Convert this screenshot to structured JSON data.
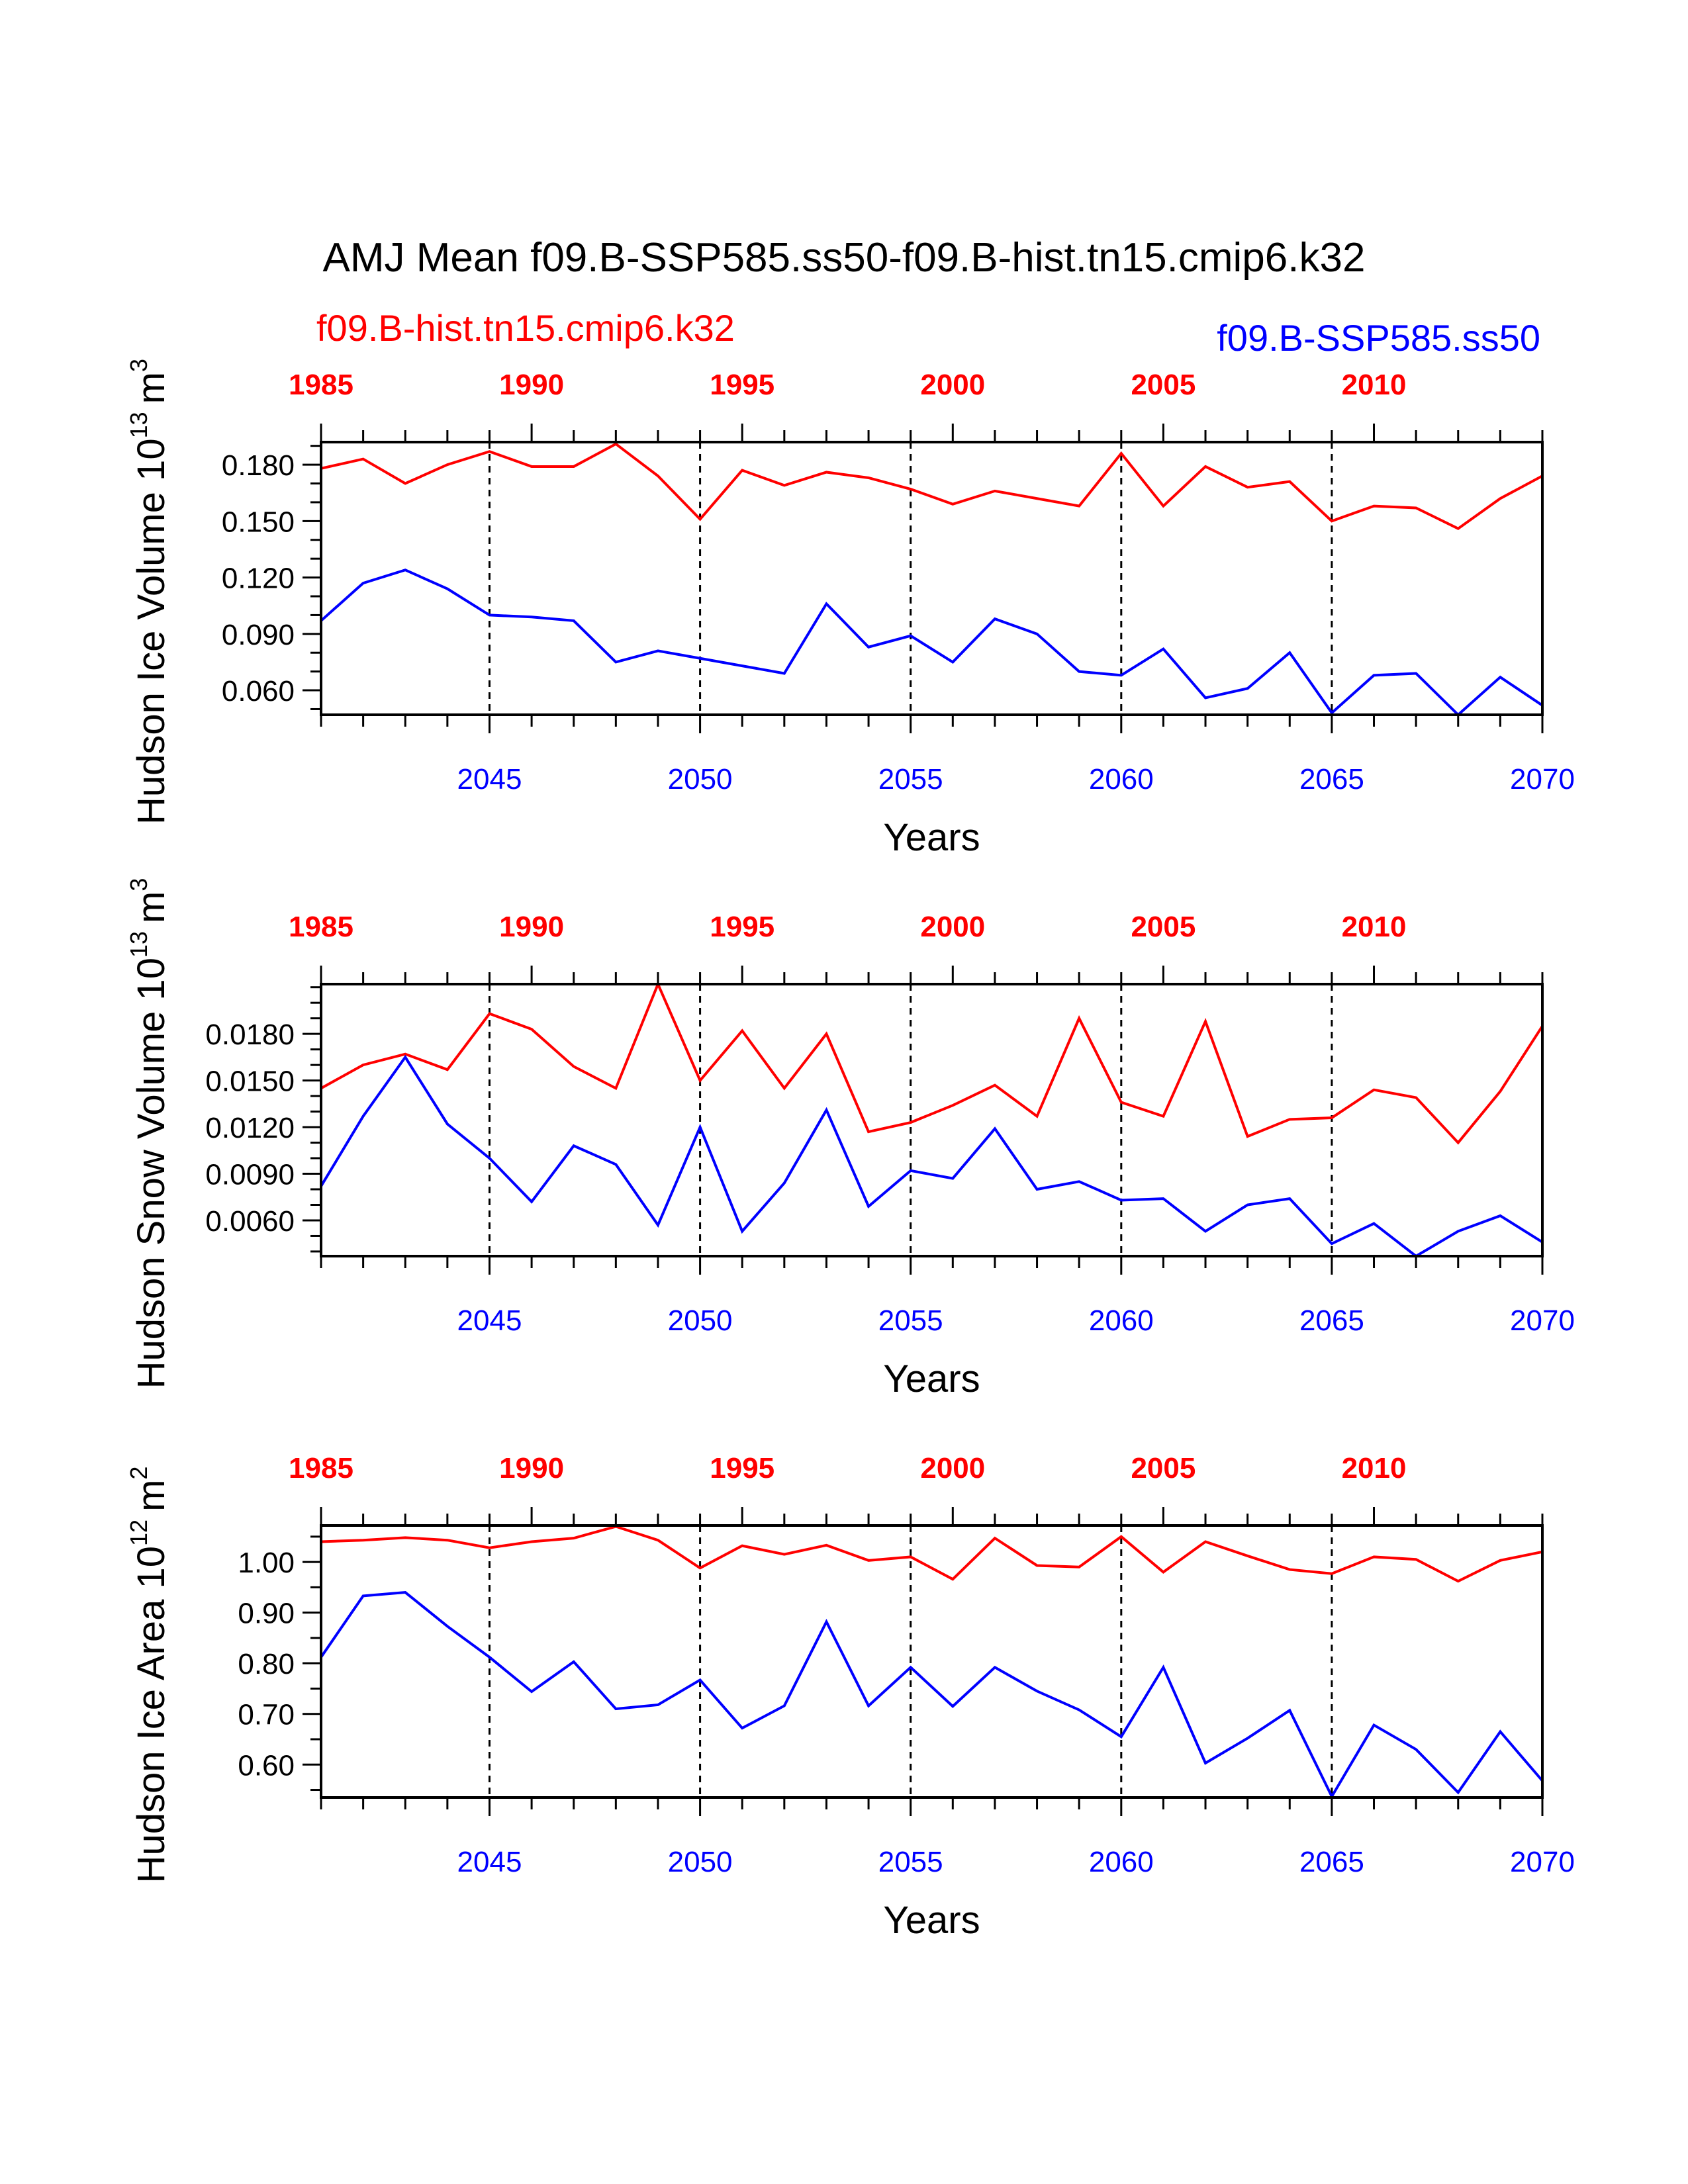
{
  "title": "AMJ Mean f09.B-SSP585.ss50-f09.B-hist.tn15.cmip6.k32",
  "legend": {
    "hist_label": "f09.B-hist.tn15.cmip6.k32",
    "ssp_label": "f09.B-SSP585.ss50"
  },
  "colors": {
    "hist": "#ff0000",
    "ssp": "#0000ff",
    "axis": "#000000"
  },
  "chart_data": [
    {
      "type": "line",
      "ylabel": "Hudson Ice Volume 10",
      "yunit_exp": "13",
      "yunit": "m",
      "yunit_pow": "3",
      "xlabel": "Years",
      "x_bottom": {
        "range": [
          2041,
          2070
        ],
        "ticks": [
          2045,
          2050,
          2055,
          2060,
          2065,
          2070
        ]
      },
      "x_top": {
        "range": [
          1985,
          2014
        ],
        "ticks": [
          1985,
          1990,
          1995,
          2000,
          2005,
          2010
        ]
      },
      "ylim": [
        0.047,
        0.192
      ],
      "yticks": [
        "0.060",
        "0.090",
        "0.120",
        "0.150",
        "0.180"
      ],
      "yticks_num": [
        0.06,
        0.09,
        0.12,
        0.15,
        0.18
      ],
      "yminor_step": 0.01,
      "series": [
        {
          "name": "f09.B-hist.tn15.cmip6.k32",
          "color_key": "hist",
          "values": [
            0.178,
            0.183,
            0.17,
            0.18,
            0.187,
            0.179,
            0.179,
            0.191,
            0.174,
            0.151,
            0.177,
            0.169,
            0.176,
            0.173,
            0.167,
            0.159,
            0.166,
            0.162,
            0.158,
            0.186,
            0.158,
            0.179,
            0.168,
            0.171,
            0.15,
            0.158,
            0.157,
            0.146,
            0.162,
            0.174
          ]
        },
        {
          "name": "f09.B-SSP585.ss50",
          "color_key": "ssp",
          "values": [
            0.097,
            0.117,
            0.124,
            0.114,
            0.1,
            0.099,
            0.097,
            0.075,
            0.081,
            0.077,
            0.073,
            0.069,
            0.106,
            0.083,
            0.089,
            0.075,
            0.098,
            0.09,
            0.07,
            0.068,
            0.082,
            0.056,
            0.061,
            0.08,
            0.048,
            0.068,
            0.069,
            0.047,
            0.067,
            0.052
          ]
        }
      ]
    },
    {
      "type": "line",
      "ylabel": "Hudson Snow Volume 10",
      "yunit_exp": "13",
      "yunit": "m",
      "yunit_pow": "3",
      "xlabel": "Years",
      "x_bottom": {
        "range": [
          2041,
          2070
        ],
        "ticks": [
          2045,
          2050,
          2055,
          2060,
          2065,
          2070
        ]
      },
      "x_top": {
        "range": [
          1985,
          2014
        ],
        "ticks": [
          1985,
          1990,
          1995,
          2000,
          2005,
          2010
        ]
      },
      "ylim": [
        0.0037,
        0.0212
      ],
      "yticks": [
        "0.0060",
        "0.0090",
        "0.0120",
        "0.0150",
        "0.0180"
      ],
      "yticks_num": [
        0.006,
        0.009,
        0.012,
        0.015,
        0.018
      ],
      "yminor_step": 0.001,
      "series": [
        {
          "name": "f09.B-hist.tn15.cmip6.k32",
          "color_key": "hist",
          "values": [
            0.0145,
            0.016,
            0.0167,
            0.0157,
            0.0193,
            0.0183,
            0.0159,
            0.0145,
            0.0212,
            0.015,
            0.0182,
            0.0145,
            0.018,
            0.0117,
            0.0123,
            0.0134,
            0.0147,
            0.0127,
            0.019,
            0.0136,
            0.0127,
            0.0188,
            0.0114,
            0.0125,
            0.0126,
            0.0144,
            0.0139,
            0.011,
            0.0143,
            0.0185
          ]
        },
        {
          "name": "f09.B-SSP585.ss50",
          "color_key": "ssp",
          "values": [
            0.0082,
            0.0127,
            0.0165,
            0.0122,
            0.01,
            0.0072,
            0.0108,
            0.0096,
            0.0057,
            0.012,
            0.0053,
            0.0084,
            0.0131,
            0.0069,
            0.0092,
            0.0087,
            0.0119,
            0.008,
            0.0085,
            0.0073,
            0.0074,
            0.0053,
            0.007,
            0.0074,
            0.0045,
            0.0058,
            0.0037,
            0.0053,
            0.0063,
            0.0046
          ]
        }
      ]
    },
    {
      "type": "line",
      "ylabel": "Hudson Ice Area 10",
      "yunit_exp": "12",
      "yunit": "m",
      "yunit_pow": "2",
      "xlabel": "Years",
      "x_bottom": {
        "range": [
          2041,
          2070
        ],
        "ticks": [
          2045,
          2050,
          2055,
          2060,
          2065,
          2070
        ]
      },
      "x_top": {
        "range": [
          1985,
          2014
        ],
        "ticks": [
          1985,
          1990,
          1995,
          2000,
          2005,
          2010
        ]
      },
      "ylim": [
        0.535,
        1.072
      ],
      "yticks": [
        "0.60",
        "0.70",
        "0.80",
        "0.90",
        "1.00"
      ],
      "yticks_num": [
        0.6,
        0.7,
        0.8,
        0.9,
        1.0
      ],
      "yminor_step": 0.05,
      "series": [
        {
          "name": "f09.B-hist.tn15.cmip6.k32",
          "color_key": "hist",
          "values": [
            1.04,
            1.043,
            1.048,
            1.043,
            1.028,
            1.04,
            1.047,
            1.07,
            1.043,
            0.988,
            1.032,
            1.015,
            1.033,
            1.003,
            1.01,
            0.966,
            1.047,
            0.993,
            0.99,
            1.05,
            0.98,
            1.04,
            1.012,
            0.985,
            0.977,
            1.01,
            1.005,
            0.962,
            1.003,
            1.02
          ]
        },
        {
          "name": "f09.B-SSP585.ss50",
          "color_key": "ssp",
          "values": [
            0.812,
            0.933,
            0.94,
            0.873,
            0.812,
            0.744,
            0.803,
            0.71,
            0.718,
            0.767,
            0.672,
            0.716,
            0.882,
            0.716,
            0.792,
            0.715,
            0.792,
            0.745,
            0.708,
            0.655,
            0.792,
            0.603,
            0.652,
            0.707,
            0.537,
            0.678,
            0.63,
            0.545,
            0.665,
            0.568
          ]
        }
      ]
    }
  ]
}
